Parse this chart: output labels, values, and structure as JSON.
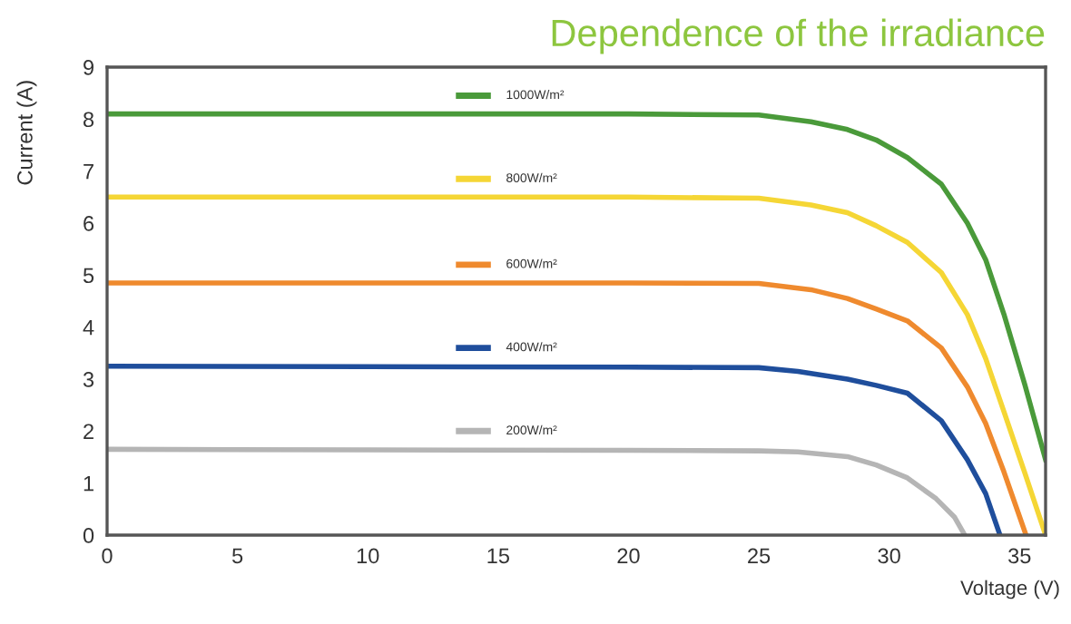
{
  "chart_data": {
    "type": "line",
    "title": "Dependence of the irradiance",
    "xlabel": "Voltage (V)",
    "ylabel": "Current (A)",
    "xlim": [
      0,
      36
    ],
    "ylim": [
      0,
      9
    ],
    "xticks": [
      0,
      5,
      10,
      15,
      20,
      25,
      30,
      35
    ],
    "yticks": [
      0,
      1,
      2,
      3,
      4,
      5,
      6,
      7,
      8,
      9
    ],
    "grid": false,
    "legend": "top",
    "marker": "none",
    "line_style": "solid",
    "series": [
      {
        "name": "1000W/m²",
        "color": "#4a9a3a",
        "x": [
          0,
          10,
          20,
          25,
          27,
          28.4,
          29.5,
          30.7,
          32,
          33,
          33.7,
          34.4,
          35.2,
          36
        ],
        "values": [
          8.1,
          8.1,
          8.1,
          8.08,
          7.95,
          7.8,
          7.6,
          7.26,
          6.75,
          6.0,
          5.3,
          4.25,
          2.9,
          1.45
        ]
      },
      {
        "name": "800W/m²",
        "color": "#f5d635",
        "x": [
          0,
          10,
          20,
          25,
          27,
          28.4,
          29.5,
          30.7,
          32,
          33,
          33.7,
          34.4,
          35.2,
          36
        ],
        "values": [
          6.5,
          6.5,
          6.5,
          6.48,
          6.35,
          6.2,
          5.95,
          5.63,
          5.05,
          4.24,
          3.4,
          2.38,
          1.2,
          0
        ]
      },
      {
        "name": "600W/m²",
        "color": "#ef8a2e",
        "x": [
          0,
          10,
          20,
          25,
          27,
          28.4,
          29.5,
          30.7,
          32,
          33,
          33.7,
          34.4,
          35.25
        ],
        "values": [
          4.85,
          4.85,
          4.85,
          4.84,
          4.72,
          4.55,
          4.35,
          4.12,
          3.6,
          2.85,
          2.15,
          1.22,
          0
        ]
      },
      {
        "name": "400W/m²",
        "color": "#1f4e9c",
        "x": [
          0,
          10,
          20,
          25,
          26.5,
          28.4,
          29.5,
          30.7,
          32,
          33,
          33.7,
          34.25
        ],
        "values": [
          3.25,
          3.24,
          3.23,
          3.22,
          3.15,
          3.0,
          2.88,
          2.73,
          2.2,
          1.45,
          0.8,
          0
        ]
      },
      {
        "name": "200W/m²",
        "color": "#b5b5b5",
        "x": [
          0,
          10,
          20,
          25,
          26.5,
          28.4,
          29.5,
          30.7,
          31.8,
          32.5,
          32.9
        ],
        "values": [
          1.65,
          1.64,
          1.63,
          1.62,
          1.6,
          1.51,
          1.35,
          1.1,
          0.7,
          0.35,
          0
        ]
      }
    ]
  }
}
